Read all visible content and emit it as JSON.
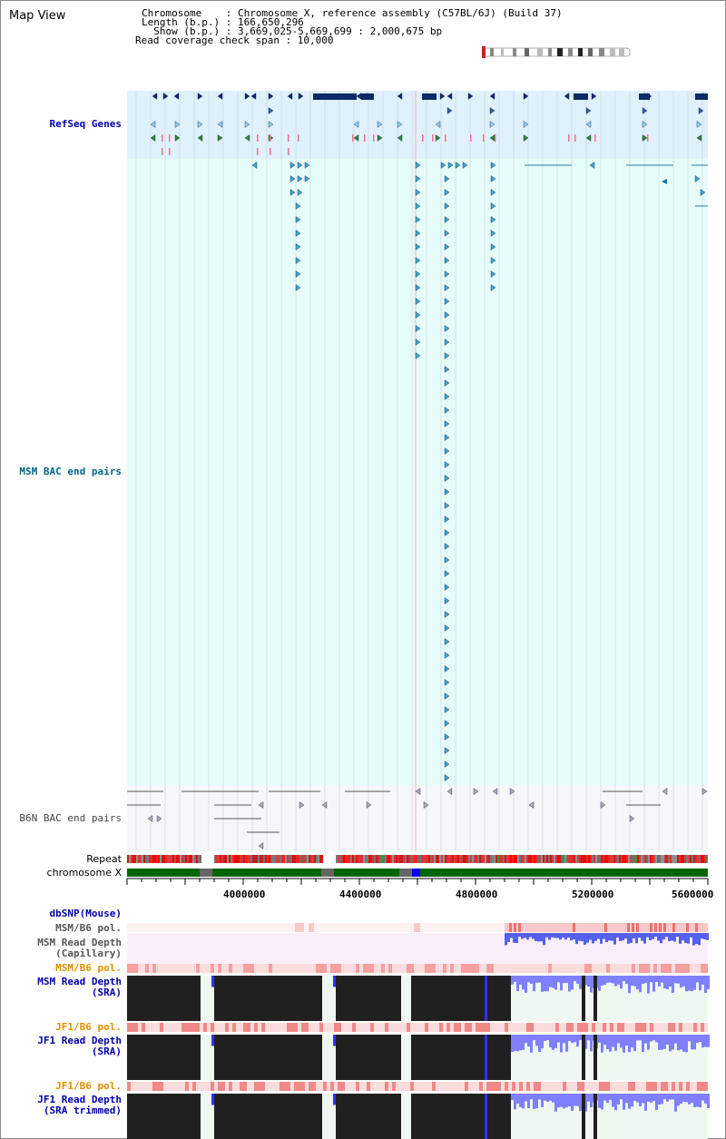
{
  "title": "Map View",
  "header": {
    "chromosome_label": "Chromosome    : Chromosome X, reference assembly (C57BL/6J) (Build 37)",
    "length_label": "Length (b.p.) : 166,650,296",
    "show_label": "  Show (b.p.) : 3,669,025-5,669,699 : 2,000,675 bp",
    "coverage_label": "Read coverage check span : 10,000"
  },
  "tracks": {
    "refseq": "RefSeq Genes",
    "msm_bac": "MSM BAC end pairs",
    "b6n_bac": "B6N BAC end pairs",
    "repeat": "Repeat",
    "chromosome": "chromosome X",
    "dbsnp": "dbSNP(Mouse)",
    "msm_b6_pol_1": "MSM/B6 pol.",
    "msm_depth_cap_1": "MSM Read Depth",
    "msm_depth_cap_2": "(Capillary)",
    "msm_b6_pol_2": "MSM/B6 pol.",
    "msm_depth_sra_1": "MSM Read Depth",
    "msm_depth_sra_2": "(SRA)",
    "jf1_b6_pol_1": "JF1/B6 pol.",
    "jf1_depth_sra_1": "JF1 Read Depth",
    "jf1_depth_sra_2": "(SRA)",
    "jf1_b6_pol_2": "JF1/B6 pol.",
    "jf1_depth_trim_1": "JF1 Read Depth",
    "jf1_depth_trim_2": "(SRA trimmed)"
  },
  "axis": {
    "ticks": [
      "4000000",
      "4400000",
      "4800000",
      "5200000",
      "5600000"
    ]
  },
  "colors": {
    "refseq_bg": "#dff1fb",
    "msm_bac_bg": "#e6fcfa",
    "b6n_bg": "#f6f7f8",
    "chrom_green": "#006600",
    "pol_pink": "#f9c9c9",
    "depth_dark": "#202020",
    "depth_blue": "#7f7fff",
    "label_blue": "#0000aa",
    "label_teal": "#006688",
    "label_orange": "#e09000"
  }
}
